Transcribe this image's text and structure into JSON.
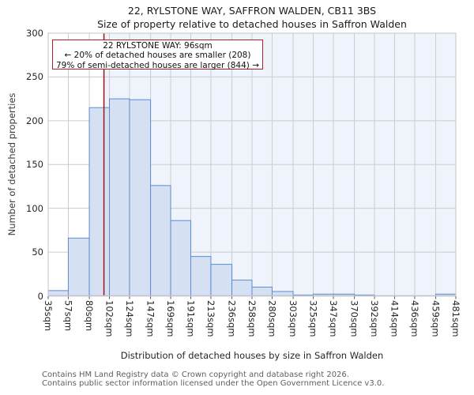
{
  "header": {
    "title": "22, RYLSTONE WAY, SAFFRON WALDEN, CB11 3BS",
    "subtitle": "Size of property relative to detached houses in Saffron Walden"
  },
  "chart_data": {
    "type": "bar",
    "title": "22, RYLSTONE WAY, SAFFRON WALDEN, CB11 3BS",
    "subtitle": "Size of property relative to detached houses in Saffron Walden",
    "xlabel": "Distribution of detached houses by size in Saffron Walden",
    "ylabel": "Number of detached properties",
    "bin_edges_sqm": [
      35,
      57,
      80,
      102,
      124,
      147,
      169,
      191,
      213,
      236,
      258,
      280,
      303,
      325,
      347,
      370,
      392,
      414,
      436,
      459,
      481
    ],
    "bin_labels": [
      "35sqm",
      "57sqm",
      "80sqm",
      "102sqm",
      "124sqm",
      "147sqm",
      "169sqm",
      "191sqm",
      "213sqm",
      "236sqm",
      "258sqm",
      "280sqm",
      "303sqm",
      "325sqm",
      "347sqm",
      "370sqm",
      "392sqm",
      "414sqm",
      "436sqm",
      "459sqm",
      "481sqm"
    ],
    "values": [
      6,
      66,
      215,
      225,
      224,
      126,
      86,
      45,
      36,
      18,
      10,
      5,
      1,
      2,
      2,
      1,
      0,
      0,
      0,
      2
    ],
    "yticks": [
      0,
      50,
      100,
      150,
      200,
      250,
      300
    ],
    "ylim": [
      0,
      300
    ],
    "grid": true,
    "marker": {
      "value_sqm": 96
    },
    "annotation": {
      "line1": "22 RYLSTONE WAY: 96sqm",
      "line2": "← 20% of detached houses are smaller (208)",
      "line3": "79% of semi-detached houses are larger (844) →"
    },
    "colors": {
      "bar_fill": "#d5e0f3",
      "bar_edge": "#5c8dd0",
      "marker_line": "#a31212",
      "annotation_border": "#b22020",
      "shading": "#eef3fc",
      "grid": "#cccccc",
      "frame": "#c2c6cc",
      "tick": "#555555"
    }
  },
  "footer": {
    "line1": "Contains HM Land Registry data © Crown copyright and database right 2026.",
    "line2": "Contains public sector information licensed under the Open Government Licence v3.0."
  }
}
